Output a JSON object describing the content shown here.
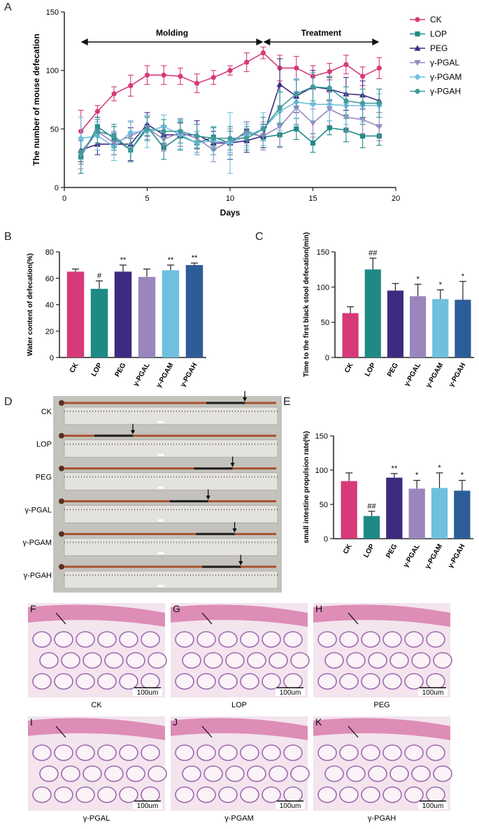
{
  "panels": {
    "a": "A",
    "b": "B",
    "c": "C",
    "d": "D",
    "e": "E",
    "f": "F",
    "g": "G",
    "h": "H",
    "i": "I",
    "j": "J",
    "k": "K"
  },
  "colors": {
    "CK": "#d63a78",
    "LOP": "#1f8a85",
    "PEG": "#3e2a80",
    "PGAL": "#9a86bd",
    "PGAM": "#6fbfde",
    "PGAH": "#2d5d98",
    "PGAH_line": "#3f9a9c"
  },
  "chart_data": [
    {
      "type": "line",
      "ylabel": "The number of mouse defecation",
      "xlabel": "Days",
      "xlim": [
        0,
        20
      ],
      "ylim": [
        0,
        150
      ],
      "xticks": [
        0,
        5,
        10,
        15,
        20
      ],
      "yticks": [
        0,
        50,
        100,
        150
      ],
      "phases": [
        {
          "label": "Molding",
          "from": 1,
          "to": 12
        },
        {
          "label": "Treatment",
          "from": 12,
          "to": 19
        }
      ],
      "legend_position": "top-right",
      "x": [
        1,
        2,
        3,
        4,
        5,
        6,
        7,
        8,
        9,
        10,
        11,
        12,
        13,
        14,
        15,
        16,
        17,
        18,
        19
      ],
      "series": [
        {
          "name": "CK",
          "marker": "circle",
          "values": [
            48,
            65,
            80,
            87,
            96,
            96,
            95,
            89,
            94,
            100,
            107,
            115,
            102,
            102,
            95,
            99,
            105,
            95,
            102
          ],
          "errors": [
            18,
            5,
            6,
            9,
            8,
            8,
            7,
            8,
            6,
            4,
            8,
            5,
            11,
            10,
            9,
            7,
            8,
            8,
            9
          ]
        },
        {
          "name": "LOP",
          "marker": "square",
          "values": [
            26,
            52,
            42,
            32,
            52,
            34,
            44,
            38,
            43,
            38,
            48,
            43,
            45,
            50,
            38,
            51,
            49,
            44,
            44
          ],
          "errors": [
            14,
            8,
            10,
            10,
            8,
            10,
            12,
            10,
            8,
            10,
            8,
            9,
            10,
            9,
            8,
            6,
            10,
            10,
            8
          ]
        },
        {
          "name": "PEG",
          "marker": "triangle-up",
          "values": [
            32,
            37,
            37,
            37,
            54,
            45,
            45,
            45,
            38,
            38,
            40,
            44,
            88,
            78,
            86,
            84,
            80,
            79,
            74
          ],
          "errors": [
            10,
            9,
            9,
            14,
            10,
            8,
            10,
            12,
            10,
            14,
            10,
            10,
            22,
            14,
            14,
            10,
            14,
            12,
            10
          ]
        },
        {
          "name": "γ-PGAL",
          "marker": "triangle-down",
          "values": [
            28,
            48,
            38,
            44,
            51,
            41,
            47,
            42,
            32,
            40,
            46,
            44,
            52,
            68,
            55,
            67,
            60,
            58,
            52
          ],
          "errors": [
            12,
            10,
            10,
            12,
            10,
            10,
            12,
            12,
            10,
            10,
            10,
            12,
            18,
            14,
            12,
            14,
            12,
            12,
            12
          ]
        },
        {
          "name": "γ-PGAM",
          "marker": "diamond",
          "values": [
            42,
            44,
            35,
            47,
            48,
            52,
            45,
            38,
            40,
            38,
            44,
            50,
            65,
            73,
            71,
            71,
            70,
            70,
            70
          ],
          "errors": [
            18,
            12,
            12,
            10,
            14,
            10,
            12,
            10,
            12,
            26,
            10,
            14,
            16,
            20,
            14,
            14,
            16,
            14,
            10
          ]
        },
        {
          "name": "γ-PGAH",
          "marker": "circle",
          "values": [
            30,
            48,
            44,
            32,
            50,
            48,
            48,
            44,
            42,
            42,
            42,
            50,
            68,
            80,
            86,
            85,
            74,
            72,
            72
          ],
          "errors": [
            10,
            10,
            10,
            10,
            10,
            10,
            10,
            10,
            10,
            10,
            10,
            10,
            14,
            12,
            12,
            10,
            12,
            12,
            12
          ]
        }
      ]
    },
    {
      "type": "bar",
      "ylabel": "Water content of defecation(%)",
      "categories": [
        "CK",
        "LOP",
        "PEG",
        "γ-PGAL",
        "γ-PGAM",
        "γ-PGAH"
      ],
      "values": [
        65,
        52,
        65,
        61,
        66,
        70
      ],
      "errors": [
        2,
        6,
        5,
        6,
        4,
        1.5
      ],
      "annotations": [
        "",
        "#",
        "**",
        "",
        "**",
        "**"
      ],
      "ylim": [
        0,
        80
      ],
      "yticks": [
        0,
        20,
        40,
        60,
        80
      ]
    },
    {
      "type": "bar",
      "ylabel": "Time to the first black stool defecation(min)",
      "categories": [
        "CK",
        "LOP",
        "PEG",
        "γ-PGAL",
        "γ-PGAM",
        "γ-PGAH"
      ],
      "values": [
        63,
        125,
        95,
        87,
        83,
        82
      ],
      "errors": [
        9,
        16,
        10,
        17,
        13,
        26
      ],
      "annotations": [
        "",
        "##",
        "",
        "*",
        "*",
        "*"
      ],
      "ylim": [
        0,
        150
      ],
      "yticks": [
        0,
        50,
        100,
        150
      ]
    },
    {
      "type": "bar",
      "ylabel": "small intestine propulsion rate(%)",
      "categories": [
        "CK",
        "LOP",
        "PEG",
        "γ-PGAL",
        "γ-PGAM",
        "γ-PGAH"
      ],
      "values": [
        84,
        33,
        89,
        73,
        74,
        70
      ],
      "errors": [
        12,
        7,
        6,
        12,
        22,
        15
      ],
      "annotations": [
        "",
        "##",
        "**",
        "*",
        "*",
        "*"
      ],
      "ylim": [
        0,
        150
      ],
      "yticks": [
        0,
        50,
        100,
        150
      ]
    }
  ],
  "intestine_photo": {
    "labels": [
      "CK",
      "LOP",
      "PEG",
      "γ-PGAL",
      "γ-PGAM",
      "γ-PGAH"
    ],
    "black_stool_fraction": [
      0.88,
      0.33,
      0.82,
      0.7,
      0.83,
      0.86
    ]
  },
  "histology": {
    "scale_label": "100um",
    "captions": [
      "CK",
      "LOP",
      "PEG",
      "γ-PGAL",
      "γ-PGAM",
      "γ-PGAH"
    ]
  }
}
